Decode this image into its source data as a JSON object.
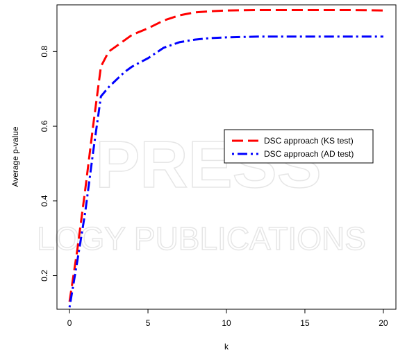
{
  "chart_data": {
    "type": "line",
    "xlabel": "k",
    "ylabel": "Average p-value",
    "xlim": [
      -0.8,
      20.8
    ],
    "ylim": [
      0.11,
      0.925
    ],
    "xticks": [
      0,
      5,
      10,
      15,
      20
    ],
    "yticks": [
      0.2,
      0.4,
      0.6,
      0.8
    ],
    "xtick_labels": [
      "0",
      "5",
      "10",
      "15",
      "20"
    ],
    "ytick_labels": [
      "0.2",
      "0.4",
      "0.6",
      "0.8"
    ],
    "grid": false,
    "legend_position": "center-right",
    "series": [
      {
        "name": "DSC approach (KS test)",
        "color": "#ff0000",
        "dash": "long-dash",
        "x": [
          0,
          0.5,
          1,
          1.5,
          2,
          2.5,
          3,
          3.5,
          4,
          5,
          6,
          7,
          8,
          9,
          10,
          12,
          14,
          16,
          18,
          20
        ],
        "y": [
          0.13,
          0.27,
          0.43,
          0.6,
          0.76,
          0.8,
          0.815,
          0.83,
          0.845,
          0.862,
          0.883,
          0.897,
          0.905,
          0.908,
          0.91,
          0.911,
          0.911,
          0.911,
          0.911,
          0.91
        ]
      },
      {
        "name": "DSC approach (AD test)",
        "color": "#0000ff",
        "dash": "dot-dash",
        "x": [
          0,
          0.5,
          1,
          1.5,
          2,
          2.5,
          3,
          3.5,
          4,
          5,
          6,
          7,
          8,
          9,
          10,
          12,
          14,
          16,
          18,
          20
        ],
        "y": [
          0.115,
          0.24,
          0.37,
          0.53,
          0.68,
          0.705,
          0.725,
          0.745,
          0.76,
          0.782,
          0.81,
          0.825,
          0.832,
          0.836,
          0.838,
          0.84,
          0.84,
          0.84,
          0.84,
          0.84
        ]
      }
    ]
  },
  "watermark": {
    "line1": "PRESS",
    "line2": "LOGY PUBLICATIONS"
  }
}
